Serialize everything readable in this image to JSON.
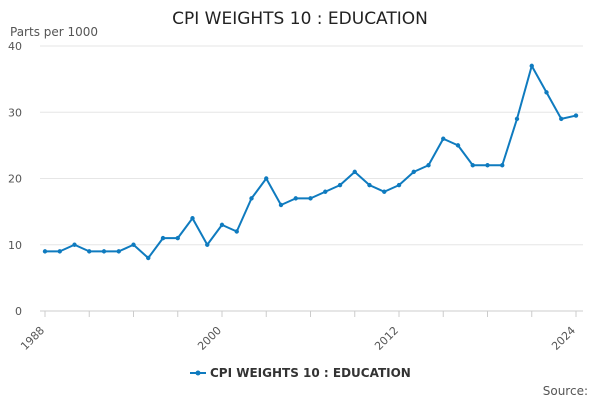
{
  "chart_data": {
    "type": "line",
    "title": "CPI WEIGHTS 10 : EDUCATION",
    "ylabel": "Parts per 1000",
    "xlabel": "",
    "x_tick_labels": [
      "1988",
      "2000",
      "2012",
      "2024"
    ],
    "y_ticks": [
      0,
      10,
      20,
      30,
      40
    ],
    "xlim": [
      1988,
      2024
    ],
    "ylim": [
      0,
      40
    ],
    "grid": true,
    "legend_position": "bottom",
    "source_label": "Source:",
    "color": "#0f7bbf",
    "series": [
      {
        "name": "CPI WEIGHTS 10 : EDUCATION",
        "x": [
          1988,
          1989,
          1990,
          1991,
          1992,
          1993,
          1994,
          1995,
          1996,
          1997,
          1998,
          1999,
          2000,
          2001,
          2002,
          2003,
          2004,
          2005,
          2006,
          2007,
          2008,
          2009,
          2010,
          2011,
          2012,
          2013,
          2014,
          2015,
          2016,
          2017,
          2018,
          2019,
          2020,
          2021,
          2022,
          2023,
          2024
        ],
        "values": [
          9,
          9,
          10,
          9,
          9,
          9,
          10,
          8,
          11,
          11,
          14,
          10,
          13,
          12,
          17,
          20,
          16,
          17,
          17,
          18,
          19,
          21,
          19,
          18,
          19,
          21,
          22,
          26,
          25,
          22,
          22,
          22,
          29,
          37,
          33,
          29,
          29.5
        ]
      }
    ]
  }
}
